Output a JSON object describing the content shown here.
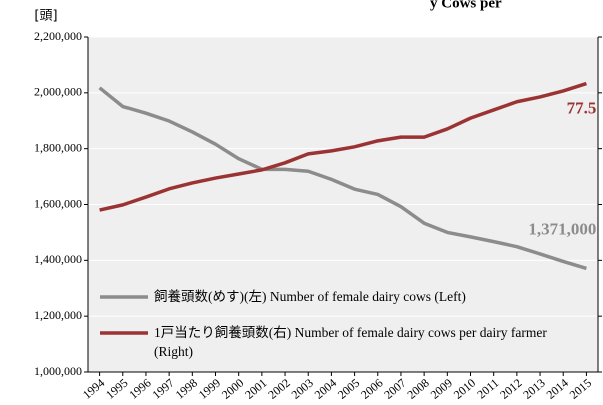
{
  "chart_data": {
    "type": "line",
    "title": "y Cows per",
    "y_label": "[頭]",
    "categories": [
      "1994",
      "1995",
      "1996",
      "1997",
      "1998",
      "1999",
      "2000",
      "2001",
      "2002",
      "2003",
      "2004",
      "2005",
      "2006",
      "2007",
      "2008",
      "2009",
      "2010",
      "2011",
      "2012",
      "2013",
      "2014",
      "2015"
    ],
    "series": [
      {
        "name": "飼養頭数(めす)(左) Number of female dairy cows (Left)",
        "color": "#8c8c8c",
        "values": [
          2018000,
          1951000,
          1927000,
          1899000,
          1860000,
          1816000,
          1764000,
          1726000,
          1726000,
          1719000,
          1690000,
          1655000,
          1636000,
          1592000,
          1533000,
          1500000,
          1484000,
          1467000,
          1449000,
          1423000,
          1396000,
          1371000
        ],
        "value_labels": [
          null,
          null,
          null,
          null,
          null,
          null,
          null,
          null,
          null,
          null,
          null,
          null,
          null,
          null,
          null,
          null,
          null,
          null,
          null,
          null,
          null,
          "1,371,000"
        ]
      },
      {
        "name": "1戸当たり飼養頭数(右) Number of female dairy cows per dairy farmer (Right)",
        "color": "#9b3333",
        "axis": "y2",
        "values": [
          43.5,
          44.9,
          47.0,
          49.2,
          50.8,
          52.1,
          53.2,
          54.3,
          56.2,
          58.6,
          59.4,
          60.5,
          62.1,
          63.1,
          63.1,
          65.3,
          68.2,
          70.4,
          72.6,
          73.9,
          75.5,
          77.5
        ],
        "value_labels": [
          null,
          null,
          null,
          null,
          null,
          null,
          null,
          null,
          null,
          null,
          null,
          null,
          null,
          null,
          null,
          null,
          null,
          null,
          null,
          null,
          null,
          "77.5"
        ]
      }
    ],
    "ylim": [
      1000000,
      2200000
    ],
    "yticks": [
      {
        "value": 1000000,
        "label": "1,000,000"
      },
      {
        "value": 1200000,
        "label": "1,200,000"
      },
      {
        "value": 1400000,
        "label": "1,400,000"
      },
      {
        "value": 1600000,
        "label": "1,600,000"
      },
      {
        "value": 1800000,
        "label": "1,800,000"
      },
      {
        "value": 2000000,
        "label": "2,000,000"
      },
      {
        "value": 2200000,
        "label": "2,200,000"
      }
    ],
    "y2lim": [
      0,
      90
    ],
    "y2ticks": [
      0,
      15,
      30,
      45,
      60,
      75,
      90
    ],
    "grid": true,
    "legend": "lower left"
  }
}
